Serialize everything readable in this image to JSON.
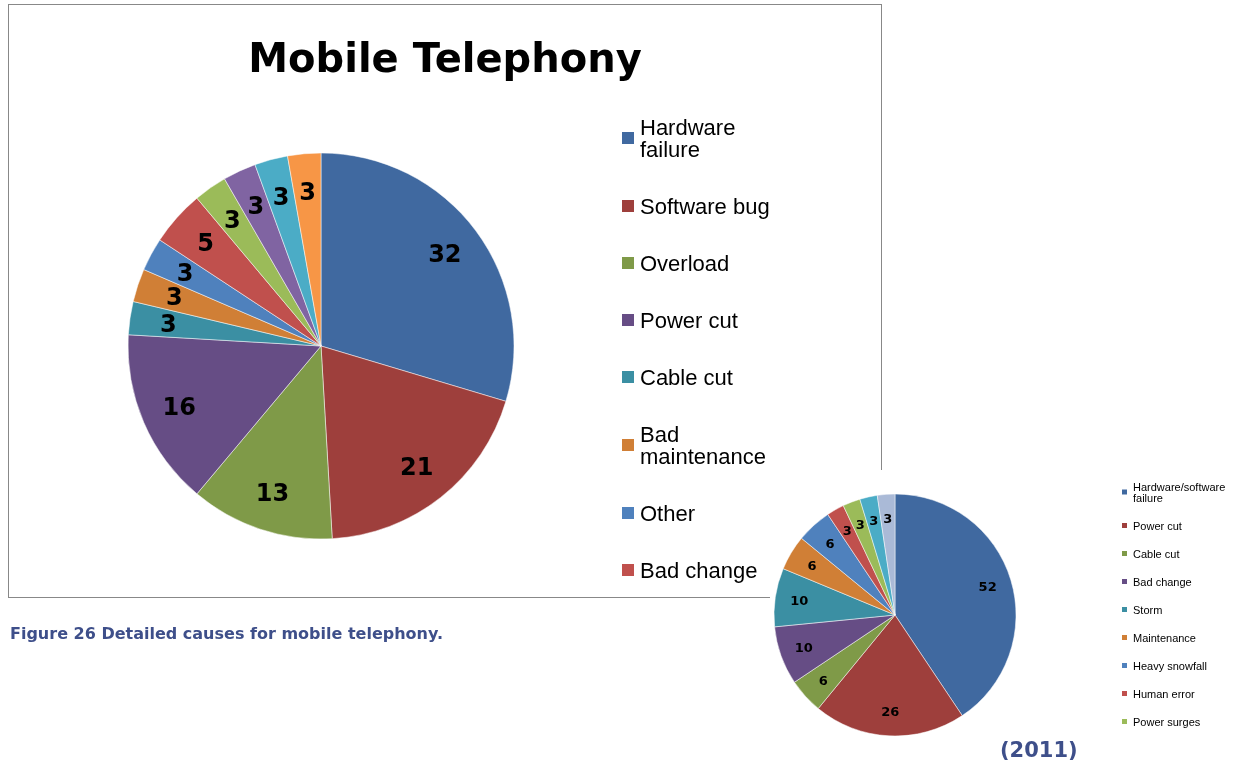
{
  "chart_data": [
    {
      "type": "pie",
      "title": "Mobile Telephony",
      "categories": [
        "Hardware failure",
        "Software bug",
        "Overload",
        "Power cut",
        "Cable cut",
        "Bad maintenance",
        "Other",
        "Bad change",
        null,
        null,
        null,
        null
      ],
      "values": [
        32,
        21,
        13,
        16,
        3,
        3,
        3,
        5,
        3,
        3,
        3,
        3
      ],
      "colors": [
        "#4069a0",
        "#9e3f3c",
        "#7f9a48",
        "#664d85",
        "#3b8fa3",
        "#d07f36",
        "#4f81bd",
        "#c0504d",
        "#9bbb59",
        "#8064a2",
        "#4bacc6",
        "#f79646"
      ],
      "data_labels": true,
      "legend": "right",
      "annotations": [
        "Figure 26 Detailed causes for mobile telephony."
      ]
    },
    {
      "type": "pie",
      "categories": [
        "Hardware/software failure",
        "Power cut",
        "Cable cut",
        "Bad change",
        "Storm",
        "Maintenance",
        "Heavy snowfall",
        "Human error",
        "Power surges",
        null,
        null
      ],
      "values": [
        52,
        26,
        6,
        10,
        10,
        6,
        6,
        3,
        3,
        3,
        3
      ],
      "colors": [
        "#4069a0",
        "#9e3f3c",
        "#7f9a48",
        "#664d85",
        "#3b8fa3",
        "#d07f36",
        "#4f81bd",
        "#c0504d",
        "#9bbb59",
        "#4bacc6",
        "#aabad7"
      ],
      "data_labels": true,
      "legend": "right",
      "annotations": [
        "(2011)"
      ]
    }
  ]
}
